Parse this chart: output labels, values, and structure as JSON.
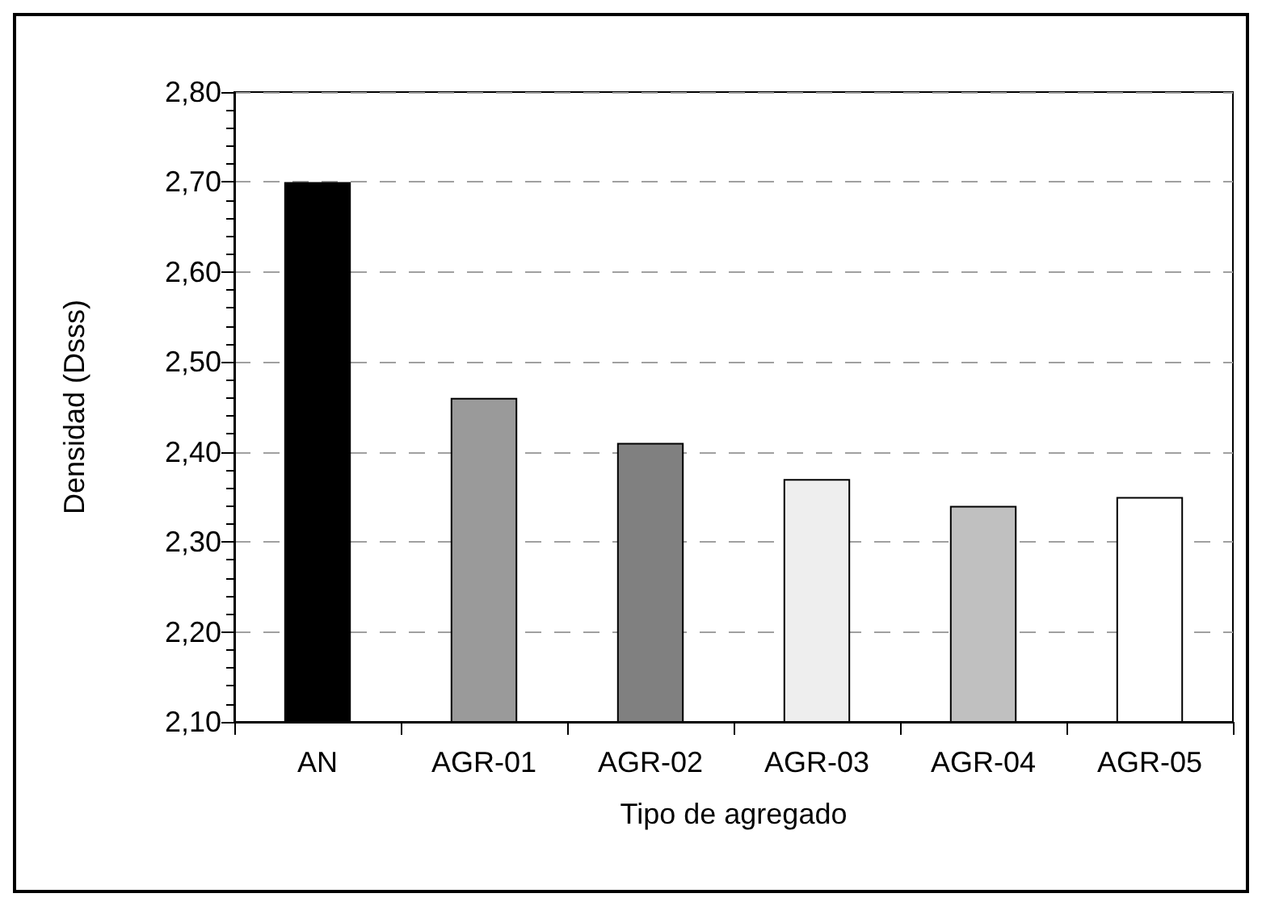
{
  "chart_data": {
    "type": "bar",
    "xlabel": "Tipo de agregado",
    "ylabel": "Densidad (Dsss)",
    "categories": [
      "AN",
      "AGR-01",
      "AGR-02",
      "AGR-03",
      "AGR-04",
      "AGR-05"
    ],
    "values": [
      2.7,
      2.46,
      2.41,
      2.37,
      2.34,
      2.35
    ],
    "colors": [
      "#000000",
      "#9a9a9a",
      "#808080",
      "#eeeeee",
      "#c0c0c0",
      "#ffffff"
    ],
    "ylim": [
      2.1,
      2.8
    ],
    "yticks": [
      {
        "value": 2.1,
        "label": "2,10"
      },
      {
        "value": 2.2,
        "label": "2,20"
      },
      {
        "value": 2.3,
        "label": "2,30"
      },
      {
        "value": 2.4,
        "label": "2,40"
      },
      {
        "value": 2.5,
        "label": "2,50"
      },
      {
        "value": 2.6,
        "label": "2,60"
      },
      {
        "value": 2.7,
        "label": "2,70"
      },
      {
        "value": 2.8,
        "label": "2,80"
      }
    ],
    "grid": "y"
  }
}
